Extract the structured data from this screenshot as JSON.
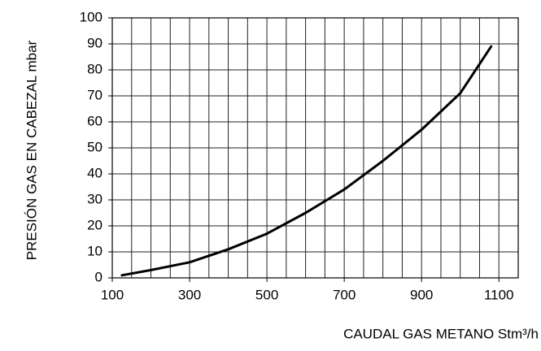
{
  "chart_data": {
    "type": "line",
    "x_label": "CAUDAL GAS METANO Stm³/h",
    "y_label": "PRESIÓN GAS EN CABEZAL mbar",
    "x": [
      125,
      200,
      300,
      400,
      500,
      600,
      700,
      800,
      900,
      1000,
      1080
    ],
    "series": [
      {
        "color": "#000000",
        "values": [
          1,
          3,
          6,
          11,
          17,
          25,
          34,
          45,
          57,
          71,
          89
        ]
      }
    ],
    "xlim": [
      100,
      1150
    ],
    "xticks": [
      100,
      300,
      500,
      700,
      900,
      1100
    ],
    "xgrid": [
      100,
      150,
      200,
      250,
      300,
      350,
      400,
      450,
      500,
      550,
      600,
      650,
      700,
      750,
      800,
      850,
      900,
      950,
      1000,
      1050,
      1100,
      1150
    ],
    "ylim": [
      0,
      100
    ],
    "yticks": [
      0,
      10,
      20,
      30,
      40,
      50,
      60,
      70,
      80,
      90,
      100
    ],
    "grid": true
  }
}
